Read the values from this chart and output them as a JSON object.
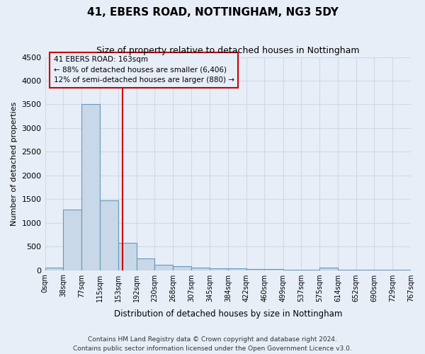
{
  "title": "41, EBERS ROAD, NOTTINGHAM, NG3 5DY",
  "subtitle": "Size of property relative to detached houses in Nottingham",
  "xlabel": "Distribution of detached houses by size in Nottingham",
  "ylabel": "Number of detached properties",
  "footnote1": "Contains HM Land Registry data © Crown copyright and database right 2024.",
  "footnote2": "Contains public sector information licensed under the Open Government Licence v3.0.",
  "bin_edges": [
    0,
    38,
    77,
    115,
    153,
    192,
    230,
    268,
    307,
    345,
    384,
    422,
    460,
    499,
    537,
    575,
    614,
    652,
    690,
    729,
    767
  ],
  "bar_heights": [
    50,
    1280,
    3500,
    1480,
    580,
    240,
    120,
    80,
    60,
    40,
    35,
    30,
    20,
    5,
    3,
    60,
    2,
    1,
    1,
    1
  ],
  "bar_color": "#c8d8e8",
  "bar_edge_color": "#6699bb",
  "grid_color": "#d0d8e8",
  "background_color": "#e8eef8",
  "property_size": 163,
  "vline_color": "#cc0000",
  "annotation_line1": "41 EBERS ROAD: 163sqm",
  "annotation_line2": "← 88% of detached houses are smaller (6,406)",
  "annotation_line3": "12% of semi-detached houses are larger (880) →",
  "annotation_box_color": "#cc0000",
  "ylim": [
    0,
    4500
  ],
  "yticks": [
    0,
    500,
    1000,
    1500,
    2000,
    2500,
    3000,
    3500,
    4000,
    4500
  ]
}
